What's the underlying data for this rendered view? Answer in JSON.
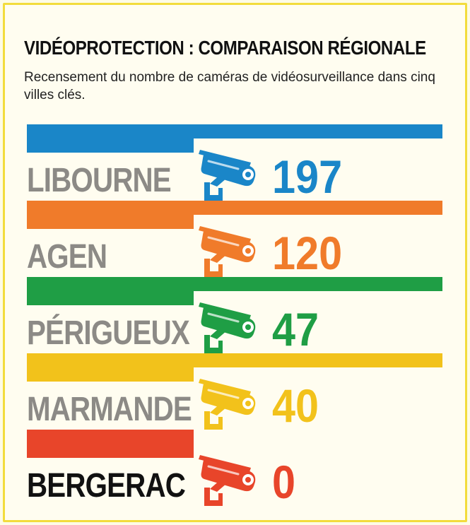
{
  "header": {
    "title": "VIDÉOPROTECTION : COMPARAISON RÉGIONALE",
    "subtitle": "Recensement du nombre de caméras de vidéosurveillance dans cinq villes clés."
  },
  "icons": {
    "camera": "security-camera-icon"
  },
  "colors": {
    "libourne": "#1a86c8",
    "agen": "#f07b2a",
    "perigueux": "#1f9e45",
    "marmande": "#f2c21b",
    "bergerac": "#e8452a",
    "label_gray": "#8c8a86",
    "label_dark": "#111111"
  },
  "chart_data": {
    "type": "bar",
    "title": "VIDÉOPROTECTION : COMPARAISON RÉGIONALE",
    "subtitle": "Recensement du nombre de caméras de vidéosurveillance dans cinq villes clés.",
    "categories": [
      "LIBOURNE",
      "AGEN",
      "PÉRIGUEUX",
      "MARMANDE",
      "BERGERAC"
    ],
    "values": [
      197,
      120,
      47,
      40,
      0
    ],
    "value_labels": [
      "197",
      "120",
      "47",
      "40",
      "0"
    ],
    "series_colors": [
      "#1a86c8",
      "#f07b2a",
      "#1f9e45",
      "#f2c21b",
      "#e8452a"
    ],
    "highlighted_category": "BERGERAC",
    "orientation": "horizontal",
    "grid": false,
    "legend": "none"
  }
}
